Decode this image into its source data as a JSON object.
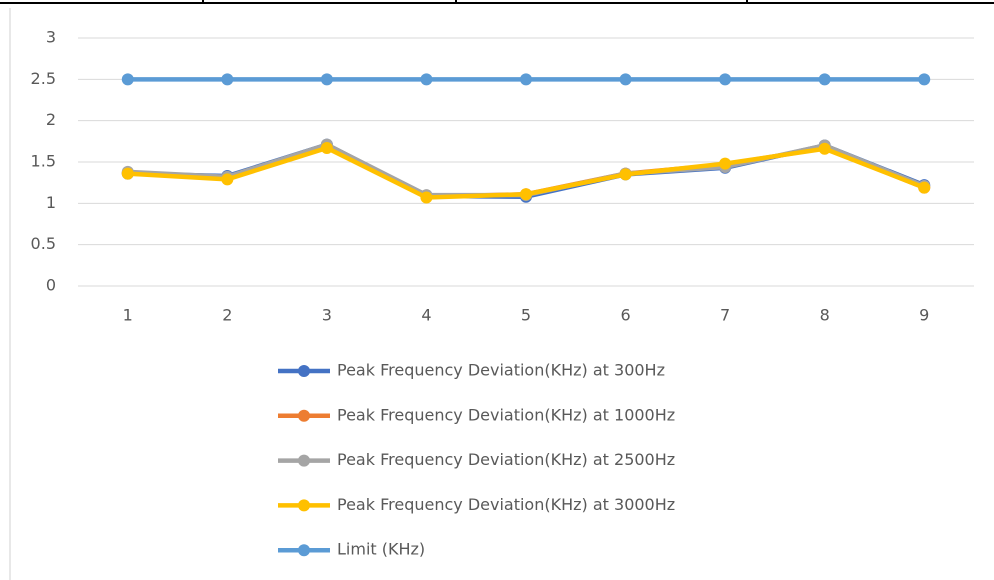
{
  "chart_data": {
    "type": "line",
    "categories": [
      "1",
      "2",
      "3",
      "4",
      "5",
      "6",
      "7",
      "8",
      "9"
    ],
    "series": [
      {
        "name": "Peak Frequency Deviation(KHz) at 300Hz",
        "color": "#4472c4",
        "values": [
          1.36,
          1.33,
          1.71,
          1.09,
          1.08,
          1.35,
          1.43,
          1.7,
          1.22
        ]
      },
      {
        "name": "Peak Frequency Deviation(KHz) at 1000Hz",
        "color": "#ed7d31",
        "values": [
          1.37,
          1.3,
          1.68,
          1.08,
          1.11,
          1.36,
          1.47,
          1.67,
          1.19
        ]
      },
      {
        "name": "Peak Frequency Deviation(KHz) at 2500Hz",
        "color": "#a5a5a5",
        "values": [
          1.38,
          1.32,
          1.71,
          1.1,
          1.1,
          1.36,
          1.44,
          1.7,
          1.21
        ]
      },
      {
        "name": "Peak Frequency Deviation(KHz) at 3000Hz",
        "color": "#ffc000",
        "values": [
          1.36,
          1.29,
          1.67,
          1.07,
          1.11,
          1.35,
          1.48,
          1.66,
          1.19
        ]
      },
      {
        "name": "Limit (KHz)",
        "color": "#5b9bd5",
        "values": [
          2.5,
          2.5,
          2.5,
          2.5,
          2.5,
          2.5,
          2.5,
          2.5,
          2.5
        ]
      }
    ],
    "ylim": [
      0,
      3
    ],
    "yticks": [
      0,
      0.5,
      1,
      1.5,
      2,
      2.5,
      3
    ],
    "grid": true,
    "legend": "bottom"
  }
}
